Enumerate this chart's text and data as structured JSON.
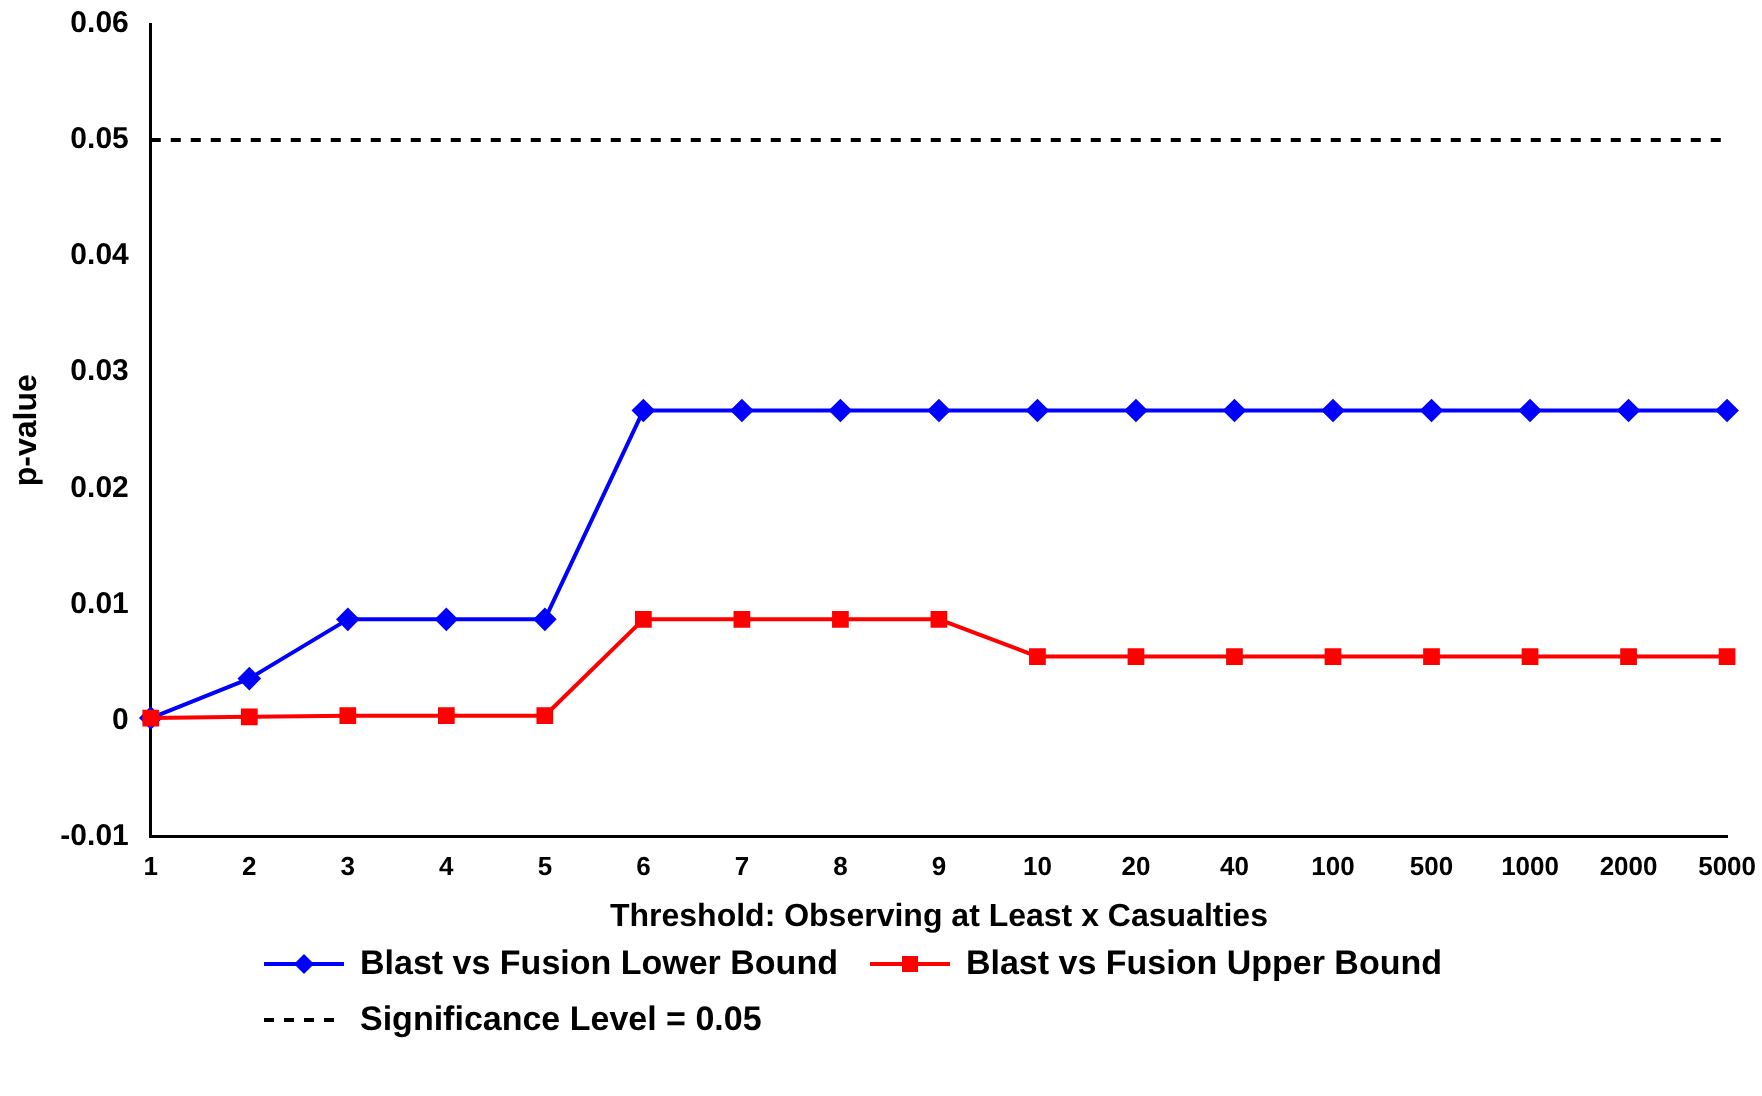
{
  "chart_data": {
    "type": "line",
    "xlabel": "Threshold: Observing at Least x Casualties",
    "ylabel": "p-value",
    "categories": [
      "1",
      "2",
      "3",
      "4",
      "5",
      "6",
      "7",
      "8",
      "9",
      "10",
      "20",
      "40",
      "100",
      "500",
      "1000",
      "2000",
      "5000"
    ],
    "series": [
      {
        "name": "Blast vs Fusion Lower Bound",
        "color": "#0000ff",
        "marker": "diamond",
        "values": [
          0.0002,
          0.0036,
          0.0087,
          0.0087,
          0.0087,
          0.0267,
          0.0267,
          0.0267,
          0.0267,
          0.0267,
          0.0267,
          0.0267,
          0.0267,
          0.0267,
          0.0267,
          0.0267,
          0.0267
        ]
      },
      {
        "name": "Blast vs Fusion Upper Bound",
        "color": "#ff0000",
        "marker": "square",
        "values": [
          0.0002,
          0.0003,
          0.0004,
          0.0004,
          0.0004,
          0.0087,
          0.0087,
          0.0087,
          0.0087,
          0.0055,
          0.0055,
          0.0055,
          0.0055,
          0.0055,
          0.0055,
          0.0055,
          0.0055
        ]
      }
    ],
    "ylim": [
      -0.01,
      0.06
    ],
    "yticks": [
      -0.01,
      0,
      0.01,
      0.02,
      0.03,
      0.04,
      0.05,
      0.06
    ],
    "ref_lines": [
      {
        "axis": "y",
        "value": 0.05,
        "label": "Significance Level = 0.05",
        "color": "#000000",
        "line_style": "dashed"
      }
    ],
    "grid": false,
    "legend": "bottom",
    "line_style": "solid"
  }
}
